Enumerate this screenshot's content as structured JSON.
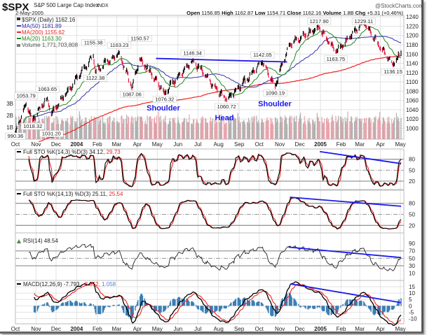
{
  "header": {
    "symbol": "$SPX",
    "name": "S&P 500 Large Cap Index",
    "exchange": "INDX",
    "date": "2-May-2005",
    "brand": "@StockCharts.com",
    "open_label": "Open",
    "open": "1156.85",
    "high_label": "High",
    "high": "1162.87",
    "low_label": "Low",
    "low": "1154.71",
    "close_label": "Close",
    "close": "1162.16",
    "volume_label": "Volume",
    "volume": "1.8B",
    "chg_label": "Chg",
    "chg": "+5.31 (+0.46%)"
  },
  "legend": {
    "price": "$SPX (Daily) 1162.16",
    "ma50": "MA(50) 1181.89",
    "ma200": "MA(200) 1155.62",
    "ma20": "MA(20) 1163.30",
    "volume": "Volume 1,771,703,808",
    "sto1_label": "Full STO %K(14,3) %D(3) 34.12,",
    "sto1_d": "29.73",
    "sto2_label": "Full STO %K(14,13) %D(3) 25.11,",
    "sto2_d": "25.54",
    "rsi": "RSI(14) 48.54",
    "macd_label": "MACD(12,26,9) -7.793,",
    "macd_signal": "-8.852,",
    "macd_hist": "1.058"
  },
  "colors": {
    "ma50": "#3333aa",
    "ma200": "#ee2222",
    "ma20": "#228822",
    "up": "#000000",
    "down": "#dd1133",
    "trend": "#1a1aee",
    "pattern_text": "#1a1aee",
    "macd_hist": "#3b7fb5",
    "vol_up": "#b0b0b0",
    "vol_down": "#e8a4ac"
  },
  "chart_data": {
    "type": "ohlc",
    "price_pivots": [
      [
        "2003-10-01",
        990.36
      ],
      [
        "2003-10-17",
        1053.79
      ],
      [
        "2003-10-27",
        1018.32
      ],
      [
        "2003-11-18",
        1063.65
      ],
      [
        "2003-11-24",
        1031.2
      ],
      [
        "2004-01-26",
        1155.38
      ],
      [
        "2004-01-29",
        1122.38
      ],
      [
        "2004-03-05",
        1163.23
      ],
      [
        "2004-03-24",
        1087.06
      ],
      [
        "2004-04-05",
        1150.57
      ],
      [
        "2004-05-12",
        1076.32
      ],
      [
        "2004-06-23",
        1146.34
      ],
      [
        "2004-08-13",
        1060.72
      ],
      [
        "2004-10-06",
        1142.05
      ],
      [
        "2004-10-25",
        1090.19
      ],
      [
        "2004-11-15",
        1180
      ],
      [
        "2004-12-30",
        1217.9
      ],
      [
        "2005-01-24",
        1163.75
      ],
      [
        "2005-03-07",
        1229.11
      ],
      [
        "2005-04-20",
        1136.15
      ],
      [
        "2005-05-02",
        1162.16
      ]
    ],
    "annotations": [
      {
        "date": "2003-10-01",
        "value": 990.36,
        "text": "990.36",
        "type": "low"
      },
      {
        "date": "2003-10-17",
        "value": 1053.79,
        "text": "1053.79",
        "type": "high"
      },
      {
        "date": "2003-10-27",
        "value": 1018.32,
        "text": "1018.32",
        "type": "low"
      },
      {
        "date": "2003-11-18",
        "value": 1063.65,
        "text": "1063.65",
        "type": "high"
      },
      {
        "date": "2003-11-24",
        "value": 1031.2,
        "text": "1031.20",
        "type": "low"
      },
      {
        "date": "2004-01-26",
        "value": 1155.38,
        "text": "1155.38",
        "type": "high"
      },
      {
        "date": "2004-01-29",
        "value": 1122.38,
        "text": "1122.38",
        "type": "low"
      },
      {
        "date": "2004-03-05",
        "value": 1163.23,
        "text": "1163.23",
        "type": "high"
      },
      {
        "date": "2004-03-24",
        "value": 1087.06,
        "text": "1087.06",
        "type": "low"
      },
      {
        "date": "2004-04-05",
        "value": 1150.57,
        "text": "1150.57",
        "type": "high"
      },
      {
        "date": "2004-05-12",
        "value": 1076.32,
        "text": "1076.32",
        "type": "low"
      },
      {
        "date": "2004-06-23",
        "value": 1146.34,
        "text": "1146.34",
        "type": "high"
      },
      {
        "date": "2004-08-13",
        "value": 1060.72,
        "text": "1060.72",
        "type": "low"
      },
      {
        "date": "2004-10-06",
        "value": 1142.05,
        "text": "1142.05",
        "type": "high"
      },
      {
        "date": "2004-10-25",
        "value": 1090.19,
        "text": "1090.19",
        "type": "low"
      },
      {
        "date": "2004-12-30",
        "value": 1217.9,
        "text": "1217.90",
        "type": "high"
      },
      {
        "date": "2005-01-24",
        "value": 1163.75,
        "text": "1163.75",
        "type": "low"
      },
      {
        "date": "2005-03-07",
        "value": 1229.11,
        "text": "1229.11",
        "type": "high"
      },
      {
        "date": "2005-04-20",
        "value": 1136.15,
        "text": "1136.15",
        "type": "low"
      }
    ],
    "pattern_labels": [
      "Shoulder",
      "Head",
      "Shoulder"
    ],
    "trendlines": {
      "price": [
        [
          "2004-04-29",
          1150.5
        ],
        [
          "2004-11-12",
          1143
        ]
      ],
      "sto1": [
        [
          "2004-12-31",
          101
        ],
        [
          "2005-05-02",
          68
        ]
      ],
      "sto2": [
        [
          "2004-11-16",
          96.5
        ],
        [
          "2005-05-02",
          72
        ]
      ],
      "rsi": [
        [
          "2004-11-14",
          80
        ],
        [
          "2005-05-02",
          52
        ]
      ],
      "macd": [
        [
          "2004-11-17",
          17.2
        ],
        [
          "2005-05-02",
          2.5
        ]
      ]
    },
    "price_axis": {
      "ticks": [
        1000,
        1020,
        1040,
        1060,
        1080,
        1100,
        1120,
        1140,
        1160,
        1180,
        1200,
        1220,
        1240
      ]
    },
    "volume_axis": {
      "ticks": [
        "1B",
        "2B",
        "3B"
      ]
    },
    "sto_axis": {
      "ticks": [
        20,
        50,
        80
      ]
    },
    "rsi_axis": {
      "ticks": [
        10,
        30,
        50,
        70,
        90
      ]
    },
    "macd_axis": {
      "ticks": [
        -10,
        -5,
        0,
        5,
        10,
        15
      ]
    },
    "x_axis": [
      {
        "date": "2003-10-01",
        "label": "Oct"
      },
      {
        "date": "2003-11-01",
        "label": "Nov"
      },
      {
        "date": "2003-12-01",
        "label": "Dec"
      },
      {
        "date": "2004-01-01",
        "label": "2004",
        "bold": true
      },
      {
        "date": "2004-02-01",
        "label": "Feb"
      },
      {
        "date": "2004-03-01",
        "label": "Mar"
      },
      {
        "date": "2004-04-01",
        "label": "Apr"
      },
      {
        "date": "2004-05-01",
        "label": "May"
      },
      {
        "date": "2004-06-01",
        "label": "Jun"
      },
      {
        "date": "2004-07-01",
        "label": "Jul"
      },
      {
        "date": "2004-08-01",
        "label": "Aug"
      },
      {
        "date": "2004-09-01",
        "label": "Sep"
      },
      {
        "date": "2004-10-01",
        "label": "Oct"
      },
      {
        "date": "2004-11-01",
        "label": "Nov"
      },
      {
        "date": "2004-12-01",
        "label": "Dec"
      },
      {
        "date": "2005-01-01",
        "label": "2005",
        "bold": true
      },
      {
        "date": "2005-02-01",
        "label": "Feb"
      },
      {
        "date": "2005-03-01",
        "label": "Mar"
      },
      {
        "date": "2005-04-01",
        "label": "Apr"
      },
      {
        "date": "2005-05-01",
        "label": "May"
      }
    ],
    "grid": true
  }
}
